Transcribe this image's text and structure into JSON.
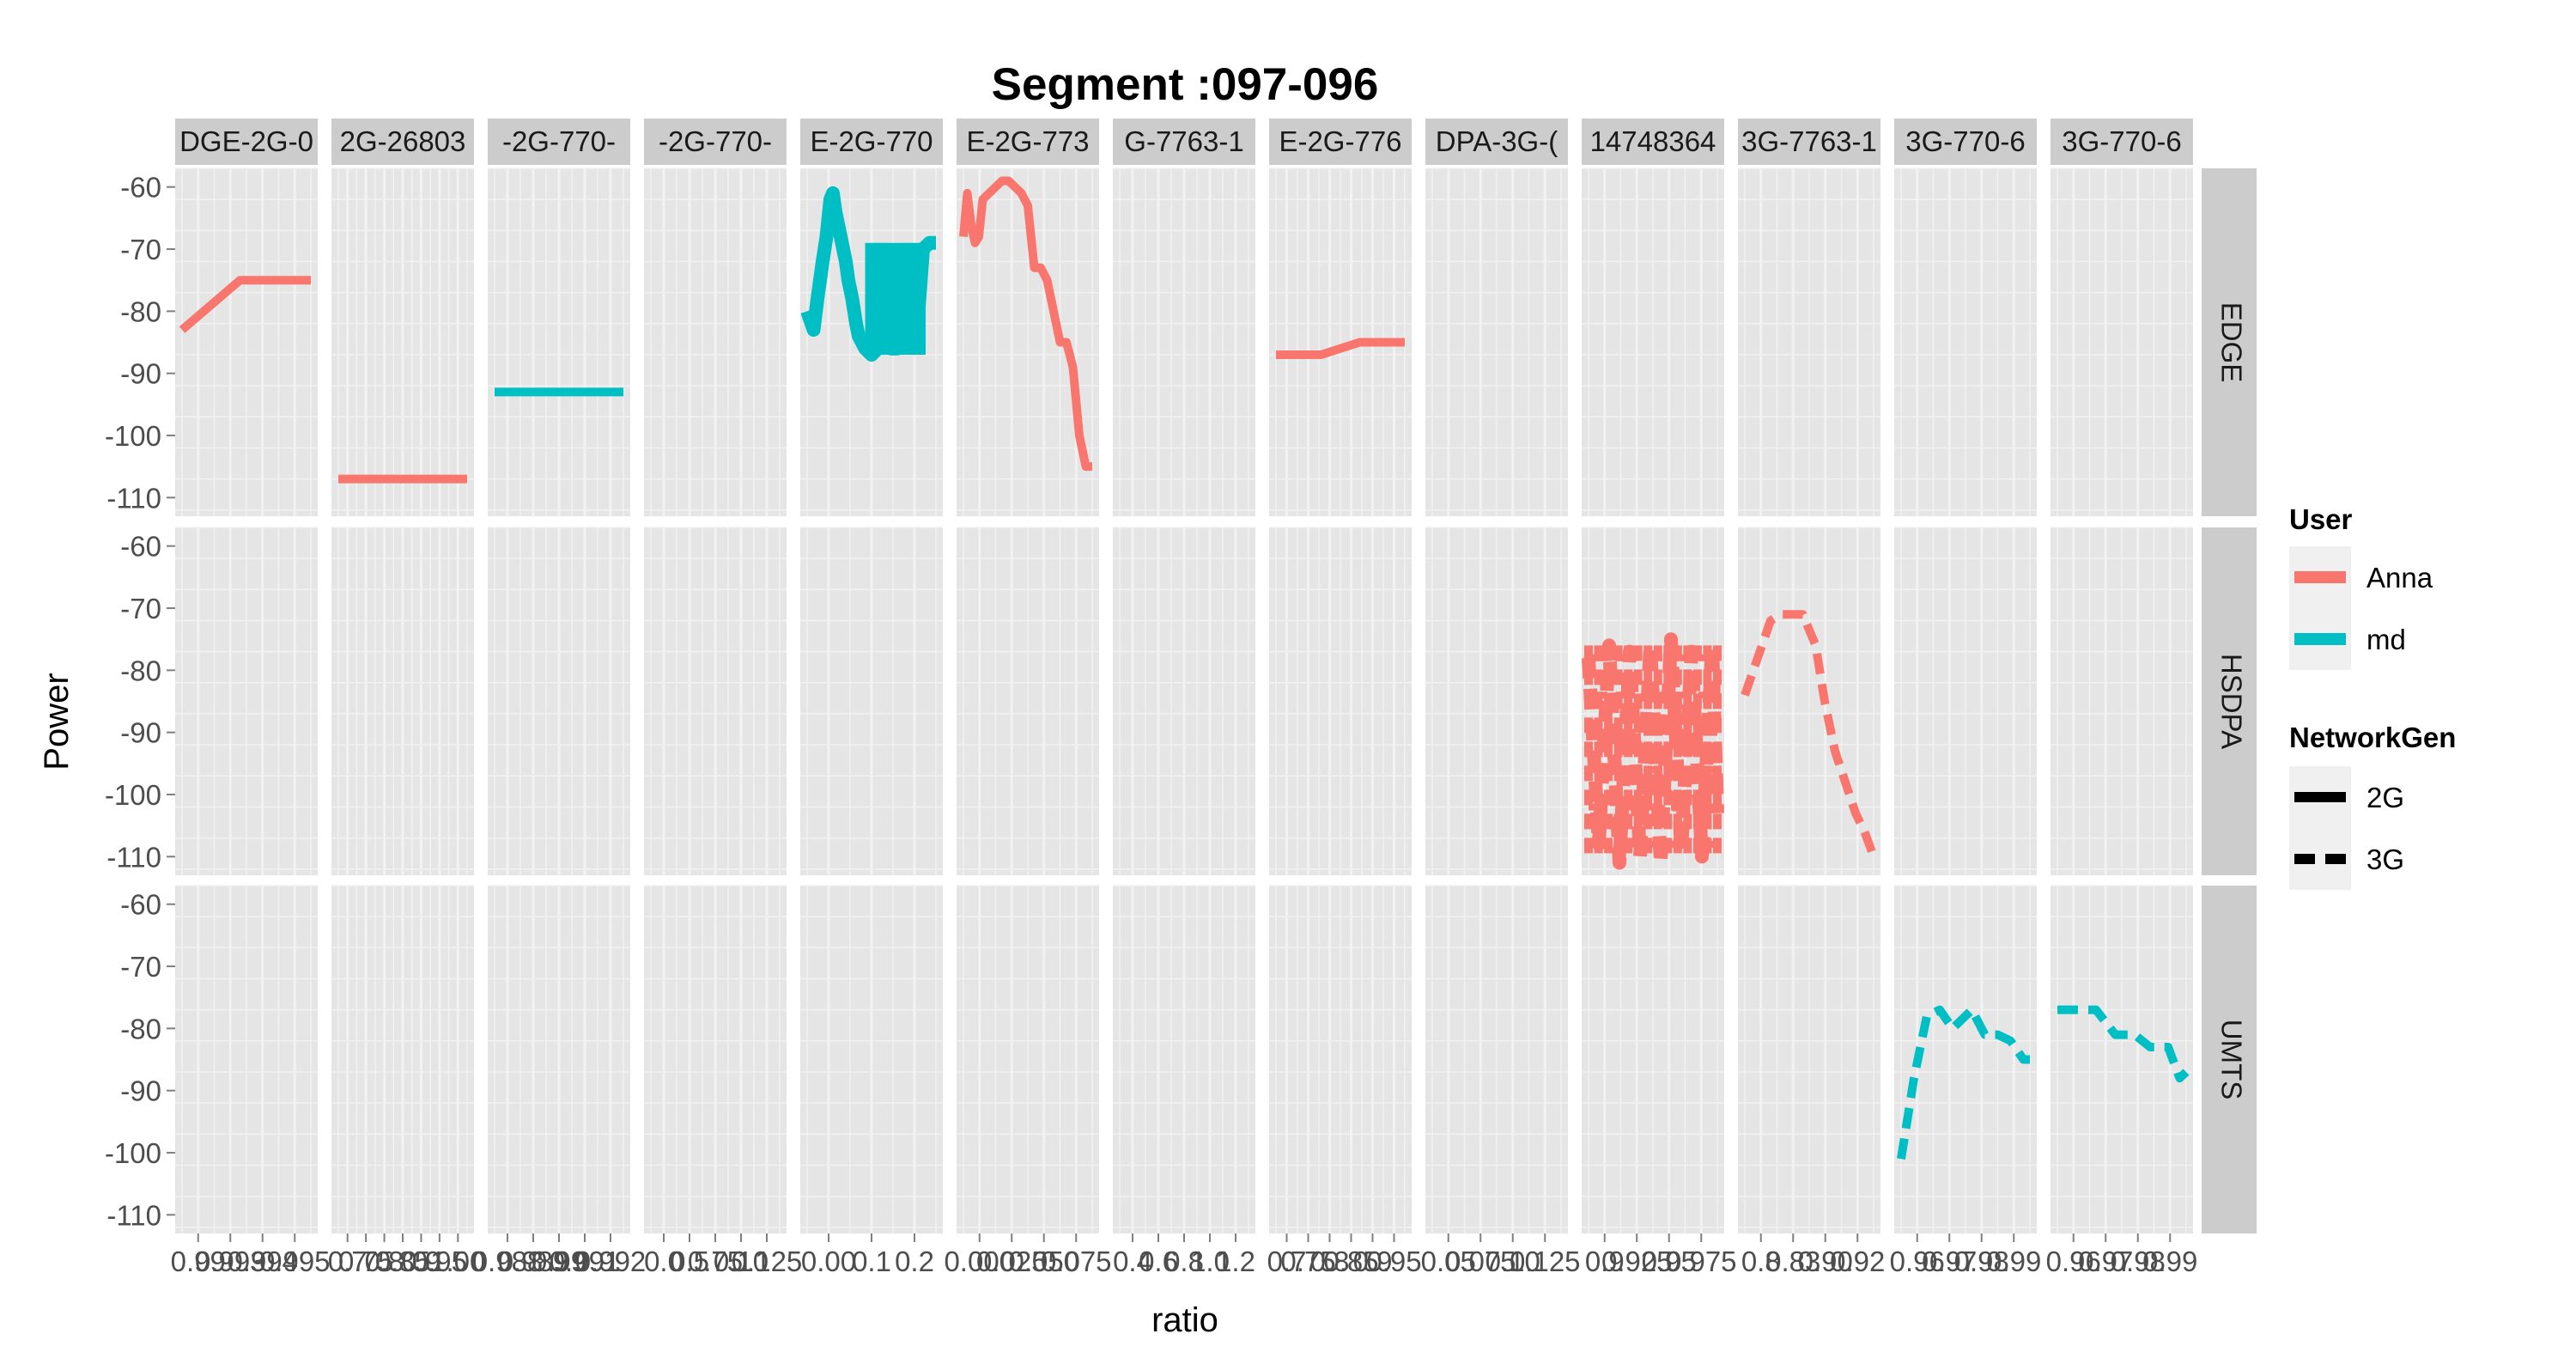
{
  "chart_data": {
    "type": "line",
    "title": "Segment :097-096",
    "xlabel": "ratio",
    "ylabel": "Power",
    "ylim": [
      -113,
      -57
    ],
    "y_ticks": [
      -60,
      -70,
      -80,
      -90,
      -100,
      -110
    ],
    "y_tick_labels": [
      "-60",
      "-70",
      "-80",
      "-90",
      "-100",
      "-110"
    ],
    "grid": true,
    "legend_position": "right",
    "rows": [
      "EDGE",
      "HSDPA",
      "UMTS"
    ],
    "colors": {
      "Anna": "#F8766D",
      "md": "#00BFC4"
    },
    "panels": [
      {
        "strip": "DGE-2G-0",
        "x_tick_labels": [
          "0.99",
          "0.993",
          "0.994",
          "0.995"
        ]
      },
      {
        "strip": "2G-26803",
        "x_tick_labels": [
          "0.7",
          "0.75",
          "0.8",
          "0.85",
          "0.9",
          "0.95",
          "1.00"
        ]
      },
      {
        "strip": "-2G-770-",
        "x_tick_labels": [
          "0.988",
          "0.989",
          "0.99",
          "0.991",
          "0.992"
        ]
      },
      {
        "strip": "-2G-770-",
        "x_tick_labels": [
          "0.0",
          "0.5",
          "0.75",
          "0.10",
          "0.125"
        ]
      },
      {
        "strip": "E-2G-770",
        "x_tick_labels": [
          "0.00",
          "0.1",
          "0.2"
        ]
      },
      {
        "strip": "E-2G-773",
        "x_tick_labels": [
          "0.000",
          "0.025",
          "0.050",
          "0.075"
        ]
      },
      {
        "strip": "G-7763-1",
        "x_tick_labels": [
          "0.4",
          "0.6",
          "0.8",
          "1.0",
          "1.2"
        ]
      },
      {
        "strip": "E-2G-776",
        "x_tick_labels": [
          "0.7",
          "0.75",
          "0.8",
          "0.85",
          "0.9",
          "0.95"
        ]
      },
      {
        "strip": "DPA-3G-(",
        "x_tick_labels": [
          "0.05",
          "0.075",
          "0.10",
          "0.125"
        ]
      },
      {
        "strip": "14748364",
        "x_tick_labels": [
          "0.9",
          "0.925",
          "0.95",
          "0.975"
        ]
      },
      {
        "strip": "3G-7763-1",
        "x_tick_labels": [
          "0.8",
          "0.83",
          "0.90",
          "0.92"
        ]
      },
      {
        "strip": "3G-770-6",
        "x_tick_labels": [
          "0.96",
          "0.97",
          "0.98",
          "0.99"
        ]
      },
      {
        "strip": "3G-770-6",
        "x_tick_labels": [
          "0.96",
          "0.97",
          "0.98",
          "0.99"
        ]
      }
    ],
    "series": [
      {
        "user": "Anna",
        "network_gen": "2G",
        "panel": 0,
        "row": 0,
        "x": [
          0.0,
          0.45,
          1.0
        ],
        "y": [
          -83,
          -75,
          -75
        ]
      },
      {
        "user": "Anna",
        "network_gen": "2G",
        "panel": 1,
        "row": 0,
        "x": [
          0.0,
          1.0
        ],
        "y": [
          -107,
          -107
        ]
      },
      {
        "user": "md",
        "network_gen": "2G",
        "panel": 2,
        "row": 0,
        "x": [
          0.0,
          1.0
        ],
        "y": [
          -93,
          -93
        ]
      },
      {
        "user": "md",
        "network_gen": "2G",
        "panel": 4,
        "row": 0,
        "zigzag": true,
        "x": [
          0.0,
          0.05,
          0.08,
          0.12,
          0.15,
          0.18,
          0.2,
          0.22,
          0.25,
          0.27,
          0.3,
          0.32,
          0.35,
          0.38,
          0.4,
          0.45,
          0.5,
          0.55,
          0.6,
          0.65,
          0.7,
          0.75,
          0.8,
          0.85,
          0.9,
          0.95,
          1.0
        ],
        "y": [
          -80,
          -83,
          -78,
          -72,
          -68,
          -62,
          -61,
          -64,
          -67,
          -69,
          -72,
          -75,
          -78,
          -82,
          -84,
          -86,
          -87,
          -86,
          -85,
          -86,
          -86,
          -85,
          -85,
          -84,
          -70,
          -69,
          -69
        ]
      },
      {
        "user": "Anna",
        "network_gen": "2G",
        "panel": 5,
        "row": 0,
        "x": [
          0.0,
          0.03,
          0.06,
          0.09,
          0.12,
          0.15,
          0.2,
          0.25,
          0.3,
          0.35,
          0.4,
          0.45,
          0.5,
          0.55,
          0.6,
          0.65,
          0.7,
          0.75,
          0.8,
          0.85,
          0.9,
          0.95,
          1.0
        ],
        "y": [
          -68,
          -61,
          -66,
          -69,
          -68,
          -62,
          -61,
          -60,
          -59,
          -59,
          -60,
          -61,
          -63,
          -73,
          -73,
          -75,
          -80,
          -85,
          -85,
          -89,
          -100,
          -105,
          -105
        ]
      },
      {
        "user": "Anna",
        "network_gen": "2G",
        "panel": 7,
        "row": 0,
        "x": [
          0.0,
          0.35,
          0.65,
          1.0
        ],
        "y": [
          -87,
          -87,
          -85,
          -85
        ]
      },
      {
        "user": "Anna",
        "network_gen": "3G",
        "panel": 9,
        "row": 1,
        "zigzag": true,
        "x": [
          0.0,
          0.08,
          0.16,
          0.24,
          0.32,
          0.4,
          0.48,
          0.56,
          0.64,
          0.72,
          0.8,
          0.88,
          0.96,
          1.0
        ],
        "y": [
          -78,
          -108,
          -76,
          -111,
          -77,
          -110,
          -76,
          -111,
          -75,
          -109,
          -77,
          -110,
          -76,
          -103
        ]
      },
      {
        "user": "Anna",
        "network_gen": "3G",
        "panel": 10,
        "row": 1,
        "x": [
          0.0,
          0.1,
          0.2,
          0.28,
          0.45,
          0.55,
          0.62,
          0.7,
          0.78,
          0.86,
          0.93,
          1.0
        ],
        "y": [
          -84,
          -78,
          -72,
          -71,
          -71,
          -76,
          -85,
          -93,
          -98,
          -103,
          -106,
          -110
        ]
      },
      {
        "user": "md",
        "network_gen": "3G",
        "panel": 11,
        "row": 2,
        "x": [
          0.0,
          0.1,
          0.2,
          0.3,
          0.4,
          0.55,
          0.65,
          0.75,
          0.85,
          0.95,
          1.0
        ],
        "y": [
          -101,
          -88,
          -78,
          -77,
          -80,
          -77,
          -81,
          -81,
          -82,
          -85,
          -85
        ]
      },
      {
        "user": "md",
        "network_gen": "3G",
        "panel": 12,
        "row": 2,
        "x": [
          0.0,
          0.1,
          0.3,
          0.45,
          0.6,
          0.72,
          0.86,
          0.95,
          1.0
        ],
        "y": [
          -77,
          -77,
          -77,
          -81,
          -81,
          -83,
          -83,
          -88,
          -87
        ]
      }
    ],
    "legend": {
      "user_title": "User",
      "user_entries": [
        "Anna",
        "md"
      ],
      "gen_title": "NetworkGen",
      "gen_entries": [
        "2G",
        "3G"
      ]
    }
  }
}
